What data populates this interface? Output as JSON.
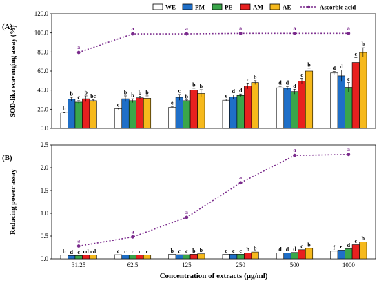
{
  "x_axis_title": "Concentration of extracts (μg/ml)",
  "legend": [
    {
      "key": "WE",
      "label": "WE",
      "color": "#ffffff"
    },
    {
      "key": "PM",
      "label": "PM",
      "color": "#1f6fc8"
    },
    {
      "key": "PE",
      "label": "PE",
      "color": "#3aa64a"
    },
    {
      "key": "AM",
      "label": "AM",
      "color": "#e8201f"
    },
    {
      "key": "AE",
      "label": "AE",
      "color": "#f6b91c"
    },
    {
      "key": "AA",
      "label": "Ascorbic acid",
      "color": "#7a2a8c"
    }
  ],
  "chart_data": [
    {
      "type": "bar",
      "panel_label": "(A)",
      "ylabel": "SOD-like scavenging assay (%)",
      "ylim": [
        0,
        120
      ],
      "yticks": [
        "0.0",
        "20.0",
        "40.0",
        "60.0",
        "80.0",
        "100.0",
        "120.0"
      ],
      "categories": [
        "31.25",
        "62.5",
        "125",
        "250",
        "500",
        "1000"
      ],
      "series": [
        {
          "name": "WE",
          "values": [
            16.5,
            20.5,
            22.0,
            29.5,
            42.5,
            58.0
          ],
          "errors": [
            0.6,
            0.6,
            1.0,
            1.0,
            1.5,
            1.5
          ],
          "labels": [
            "b",
            "c",
            "e",
            "e",
            "d",
            "d"
          ]
        },
        {
          "name": "PM",
          "values": [
            30.5,
            31.0,
            32.5,
            33.0,
            42.0,
            55.0
          ],
          "errors": [
            2.0,
            3.0,
            3.0,
            2.0,
            2.0,
            6.0
          ],
          "labels": [
            "b",
            "b",
            "c",
            "d",
            "d",
            "d"
          ]
        },
        {
          "name": "PE",
          "values": [
            27.5,
            29.0,
            29.0,
            34.5,
            38.5,
            43.0
          ],
          "errors": [
            1.5,
            2.0,
            0.8,
            1.5,
            2.5,
            5.0
          ],
          "labels": [
            "c",
            "b",
            "b",
            "d",
            "d",
            "e"
          ]
        },
        {
          "name": "AM",
          "values": [
            31.0,
            32.0,
            40.0,
            44.5,
            49.5,
            69.0
          ],
          "errors": [
            3.0,
            1.5,
            2.0,
            3.0,
            3.0,
            5.0
          ],
          "labels": [
            "b",
            "b",
            "b",
            "c",
            "c",
            "c"
          ]
        },
        {
          "name": "AE",
          "values": [
            29.0,
            31.5,
            36.5,
            48.0,
            60.0,
            79.5
          ],
          "errors": [
            1.0,
            2.5,
            4.0,
            2.0,
            3.0,
            5.0
          ],
          "labels": [
            "bc",
            "b",
            "b",
            "b",
            "b",
            "b"
          ]
        }
      ],
      "line_series": {
        "name": "Ascorbic acid",
        "values": [
          79.5,
          99.0,
          99.0,
          99.5,
          99.5,
          99.5
        ],
        "labels": [
          "a",
          "a",
          "a",
          "a",
          "a",
          "a"
        ]
      },
      "grid": false
    },
    {
      "type": "bar",
      "panel_label": "(B)",
      "ylabel": "Reducing power assay",
      "ylim": [
        0,
        2.5
      ],
      "yticks": [
        "0.0",
        "0.5",
        "1.0",
        "1.5",
        "2.0",
        "2.5"
      ],
      "categories": [
        "31.25",
        "62.5",
        "125",
        "250",
        "500",
        "1000"
      ],
      "series": [
        {
          "name": "WE",
          "values": [
            0.08,
            0.09,
            0.1,
            0.1,
            0.13,
            0.17
          ],
          "errors": [
            0.0,
            0.0,
            0.0,
            0.0,
            0.0,
            0.0
          ],
          "labels": [
            "b",
            "c",
            "b",
            "c",
            "d",
            "f"
          ]
        },
        {
          "name": "PM",
          "values": [
            0.07,
            0.08,
            0.09,
            0.1,
            0.13,
            0.19
          ],
          "errors": [
            0.0,
            0.0,
            0.0,
            0.0,
            0.0,
            0.0
          ],
          "labels": [
            "d",
            "c",
            "c",
            "c",
            "d",
            "e"
          ]
        },
        {
          "name": "PE",
          "values": [
            0.07,
            0.08,
            0.09,
            0.1,
            0.14,
            0.22
          ],
          "errors": [
            0.0,
            0.0,
            0.0,
            0.0,
            0.0,
            0.0
          ],
          "labels": [
            "c",
            "c",
            "c",
            "c",
            "d",
            "d"
          ]
        },
        {
          "name": "AM",
          "values": [
            0.08,
            0.08,
            0.1,
            0.13,
            0.2,
            0.31
          ],
          "errors": [
            0.0,
            0.0,
            0.0,
            0.0,
            0.0,
            0.0
          ],
          "labels": [
            "cd",
            "c",
            "b",
            "b",
            "c",
            "c"
          ]
        },
        {
          "name": "AE",
          "values": [
            0.08,
            0.08,
            0.11,
            0.15,
            0.23,
            0.37
          ],
          "errors": [
            0.0,
            0.0,
            0.0,
            0.0,
            0.0,
            0.0
          ],
          "labels": [
            "cd",
            "c",
            "b",
            "b",
            "b",
            "b"
          ]
        }
      ],
      "line_series": {
        "name": "Ascorbic acid",
        "values": [
          0.28,
          0.48,
          0.91,
          1.67,
          2.27,
          2.29
        ],
        "labels": [
          "a",
          "a",
          "a",
          "a",
          "a",
          "a"
        ]
      },
      "grid": false
    }
  ]
}
